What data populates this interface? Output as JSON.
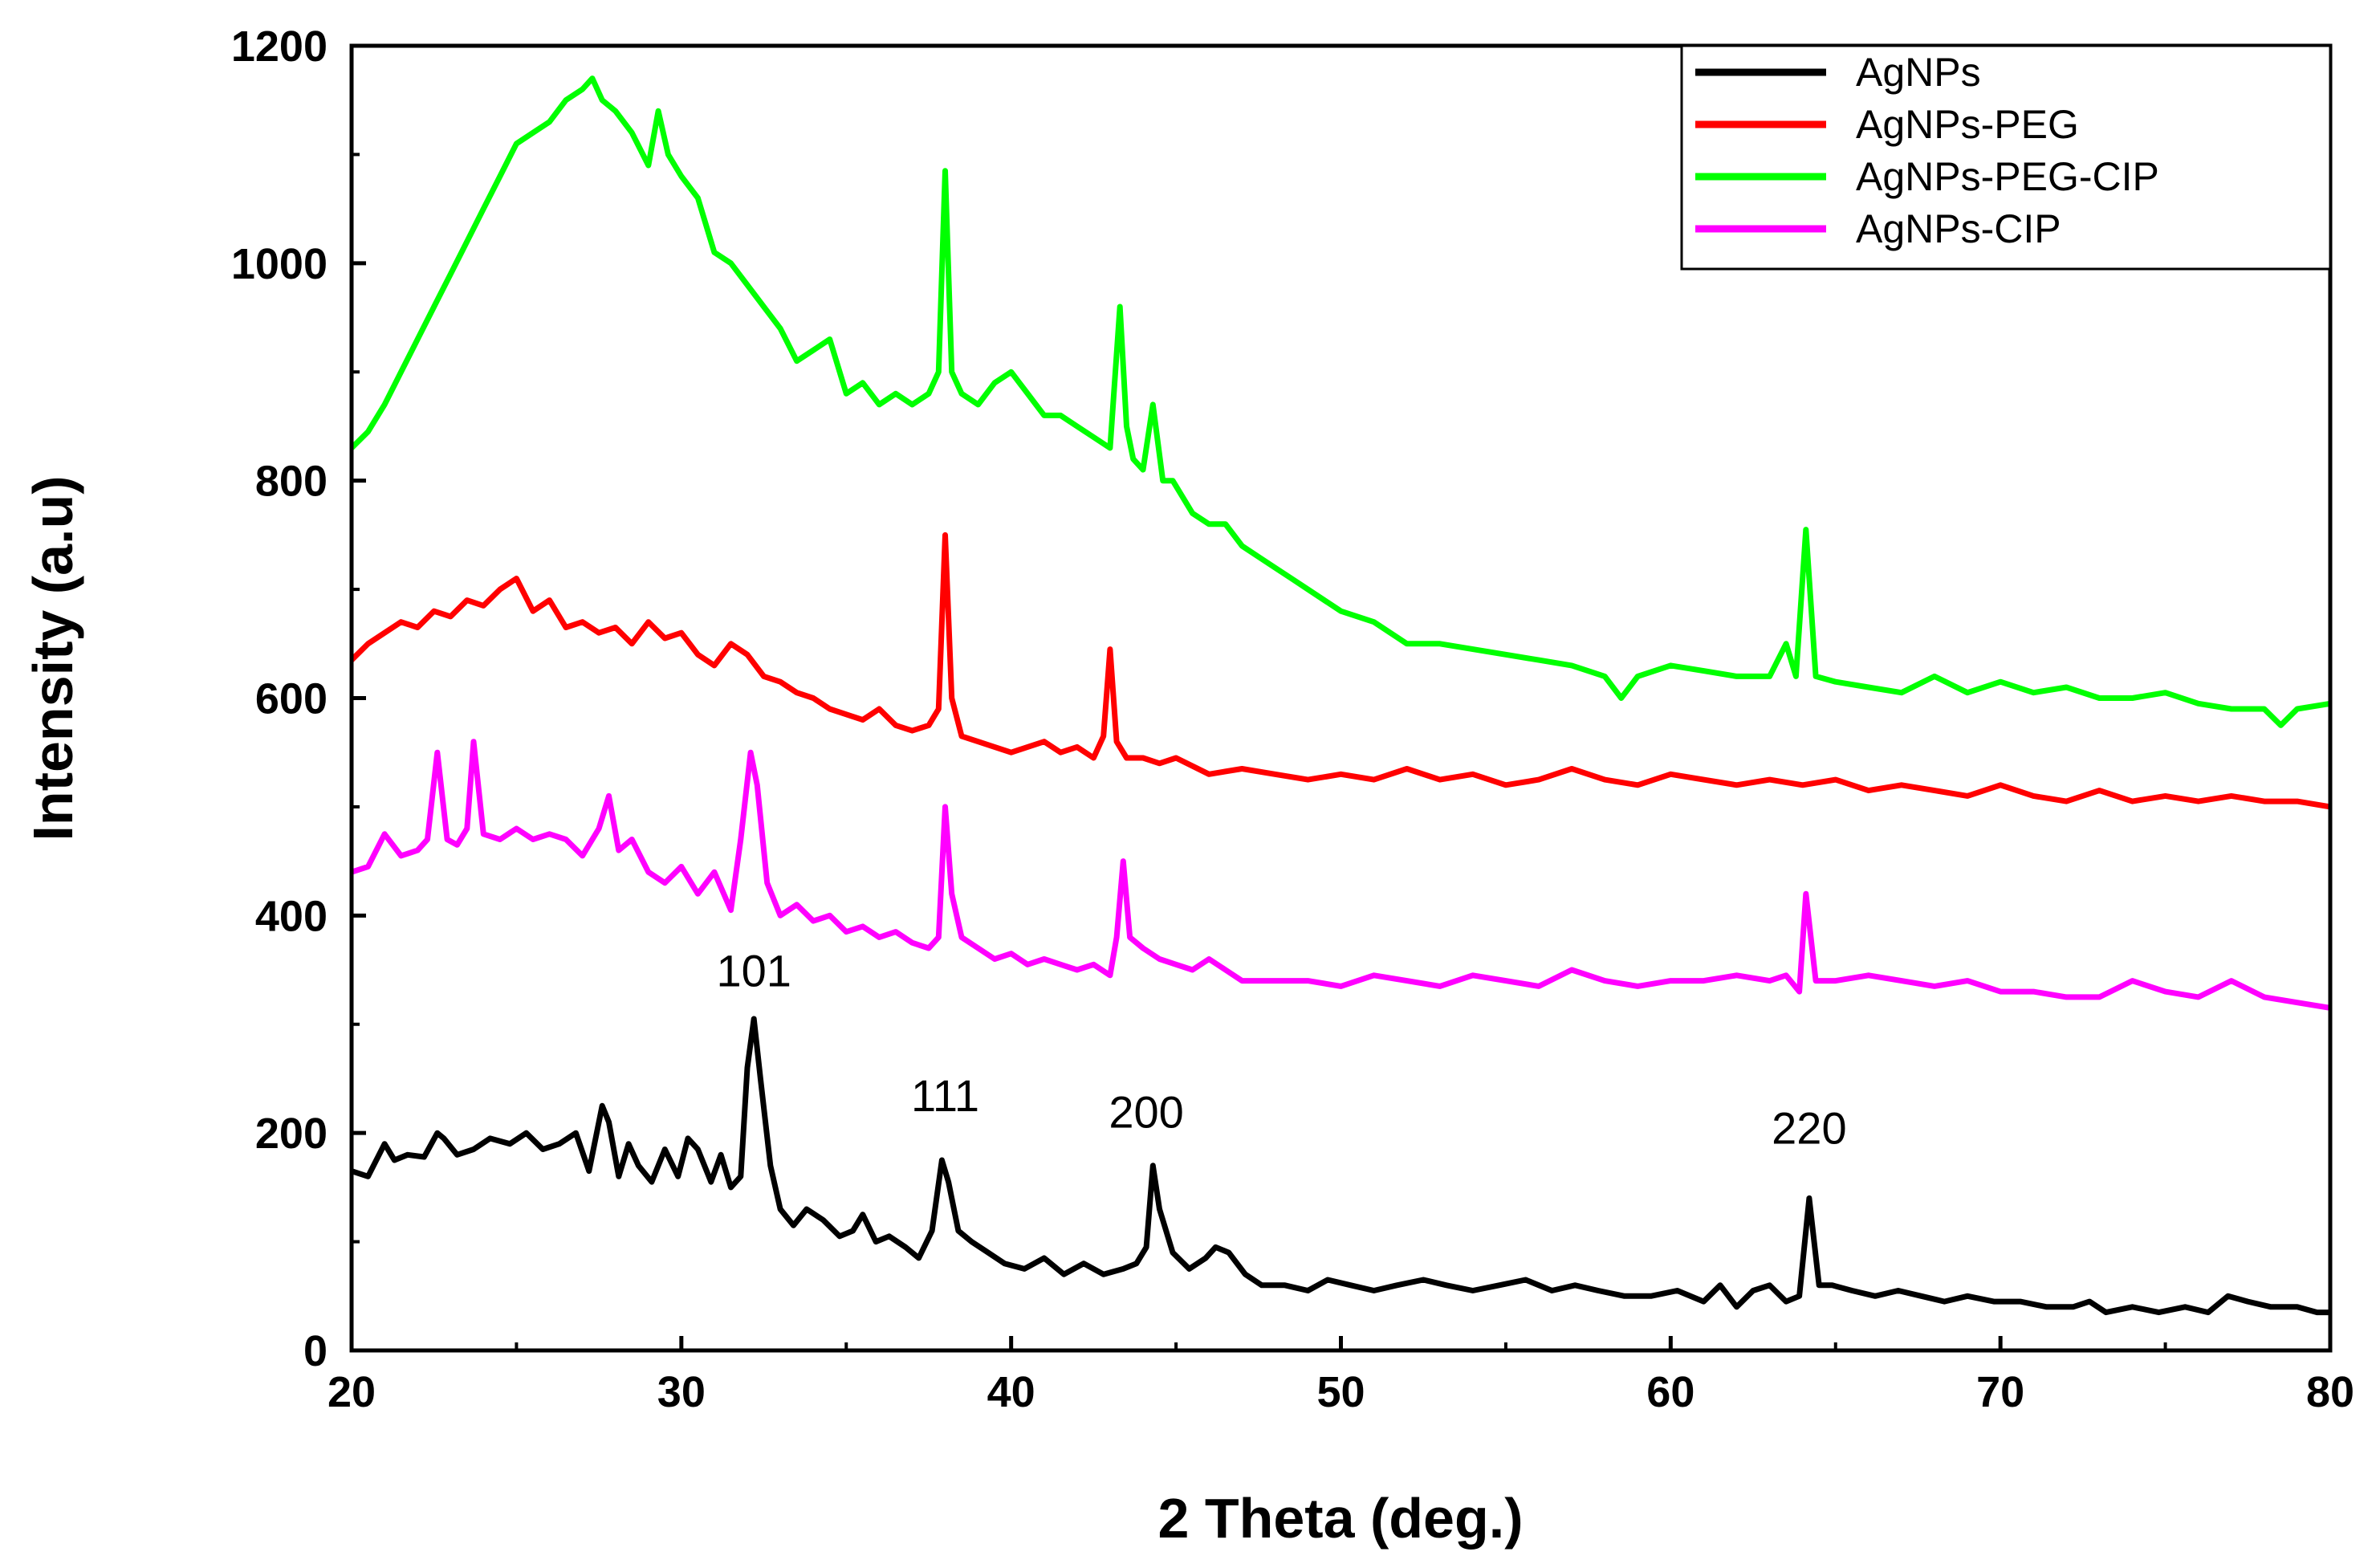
{
  "chart_data": {
    "type": "line",
    "title": "",
    "xlabel": "2 Theta (deg.)",
    "ylabel": "Intensity (a.u)",
    "xlim": [
      20,
      80
    ],
    "ylim": [
      0,
      1200
    ],
    "xticks": [
      20,
      30,
      40,
      50,
      60,
      70,
      80
    ],
    "yticks": [
      0,
      200,
      400,
      600,
      800,
      1000,
      1200
    ],
    "legend_position": "top-right",
    "series": [
      {
        "name": "AgNPs",
        "color": "#000000",
        "x": [
          20,
          20.5,
          21,
          21.3,
          21.7,
          22.2,
          22.6,
          22.8,
          23.2,
          23.7,
          24.2,
          24.8,
          25.3,
          25.8,
          26.3,
          26.8,
          27.2,
          27.6,
          27.8,
          28.1,
          28.4,
          28.7,
          29.1,
          29.5,
          29.9,
          30.2,
          30.5,
          30.9,
          31.2,
          31.5,
          31.8,
          32.0,
          32.2,
          32.4,
          32.7,
          33.0,
          33.4,
          33.8,
          34.3,
          34.8,
          35.2,
          35.5,
          35.9,
          36.3,
          36.8,
          37.2,
          37.6,
          37.9,
          38.1,
          38.4,
          38.8,
          39.3,
          39.8,
          40.4,
          41.0,
          41.6,
          42.2,
          42.8,
          43.4,
          43.8,
          44.1,
          44.3,
          44.5,
          44.9,
          45.4,
          45.9,
          46.2,
          46.6,
          47.1,
          47.6,
          48.3,
          49.0,
          49.6,
          50.3,
          51.0,
          51.7,
          52.5,
          53.2,
          54.0,
          54.8,
          55.6,
          56.4,
          57.1,
          57.8,
          58.6,
          59.4,
          60.2,
          61.0,
          61.5,
          62.0,
          62.5,
          63.0,
          63.5,
          63.9,
          64.2,
          64.5,
          64.9,
          65.5,
          66.2,
          66.9,
          67.6,
          68.3,
          69.0,
          69.8,
          70.6,
          71.4,
          72.2,
          72.7,
          73.2,
          74.0,
          74.8,
          75.6,
          76.3,
          76.9,
          77.5,
          78.2,
          79.0,
          79.6,
          80
        ],
        "y": [
          165,
          160,
          190,
          175,
          180,
          178,
          200,
          195,
          180,
          185,
          195,
          190,
          200,
          185,
          190,
          200,
          165,
          225,
          210,
          160,
          190,
          170,
          155,
          185,
          160,
          195,
          185,
          155,
          180,
          150,
          160,
          260,
          305,
          250,
          170,
          130,
          115,
          130,
          120,
          105,
          110,
          125,
          100,
          105,
          95,
          85,
          110,
          175,
          155,
          110,
          100,
          90,
          80,
          75,
          85,
          70,
          80,
          70,
          75,
          80,
          95,
          170,
          130,
          90,
          75,
          85,
          95,
          90,
          70,
          60,
          60,
          55,
          65,
          60,
          55,
          60,
          65,
          60,
          55,
          60,
          65,
          55,
          60,
          55,
          50,
          50,
          55,
          45,
          60,
          40,
          55,
          60,
          45,
          50,
          140,
          60,
          60,
          55,
          50,
          55,
          50,
          45,
          50,
          45,
          45,
          40,
          40,
          45,
          35,
          40,
          35,
          40,
          35,
          50,
          45,
          40,
          40,
          35,
          35
        ]
      },
      {
        "name": "AgNPs-PEG",
        "color": "#ff0000",
        "x": [
          20,
          20.5,
          21,
          21.5,
          22,
          22.5,
          23,
          23.5,
          24,
          24.5,
          25,
          25.5,
          26,
          26.5,
          27,
          27.5,
          28,
          28.5,
          29,
          29.5,
          30,
          30.5,
          31,
          31.5,
          32,
          32.5,
          33,
          33.5,
          34,
          34.5,
          35,
          35.5,
          36,
          36.5,
          37,
          37.5,
          37.8,
          38.0,
          38.2,
          38.5,
          39,
          39.5,
          40,
          40.5,
          41,
          41.5,
          42,
          42.5,
          42.8,
          43.0,
          43.2,
          43.5,
          44,
          44.5,
          45,
          46,
          47,
          48,
          49,
          50,
          51,
          52,
          53,
          54,
          55,
          56,
          57,
          58,
          59,
          60,
          61,
          62,
          63,
          64,
          65,
          66,
          67,
          68,
          69,
          70,
          71,
          72,
          73,
          74,
          75,
          76,
          77,
          78,
          79,
          80
        ],
        "y": [
          635,
          650,
          660,
          670,
          665,
          680,
          675,
          690,
          685,
          700,
          710,
          680,
          690,
          665,
          670,
          660,
          665,
          650,
          670,
          655,
          660,
          640,
          630,
          650,
          640,
          620,
          615,
          605,
          600,
          590,
          585,
          580,
          590,
          575,
          570,
          575,
          590,
          750,
          600,
          565,
          560,
          555,
          550,
          555,
          560,
          550,
          555,
          545,
          565,
          645,
          560,
          545,
          545,
          540,
          545,
          530,
          535,
          530,
          525,
          530,
          525,
          535,
          525,
          530,
          520,
          525,
          535,
          525,
          520,
          530,
          525,
          520,
          525,
          520,
          525,
          515,
          520,
          515,
          510,
          520,
          510,
          505,
          515,
          505,
          510,
          505,
          510,
          505,
          505,
          500
        ]
      },
      {
        "name": "AgNPs-PEG-CIP",
        "color": "#00ff00",
        "x": [
          20,
          20.5,
          21,
          21.5,
          22,
          22.5,
          23,
          23.5,
          24,
          24.5,
          25,
          25.5,
          26,
          26.5,
          27,
          27.3,
          27.6,
          28,
          28.5,
          29,
          29.3,
          29.6,
          30,
          30.5,
          31,
          31.5,
          32,
          32.5,
          33,
          33.5,
          34,
          34.5,
          35,
          35.5,
          36,
          36.5,
          37,
          37.5,
          37.8,
          38.0,
          38.2,
          38.5,
          39,
          39.5,
          40,
          40.5,
          41,
          41.5,
          42,
          42.5,
          43,
          43.3,
          43.5,
          43.7,
          44,
          44.3,
          44.6,
          44.9,
          45.5,
          46,
          46.5,
          47,
          47.5,
          48,
          48.5,
          49,
          50,
          51,
          52,
          53,
          54,
          55,
          56,
          57,
          58,
          58.5,
          59,
          60,
          61,
          62,
          63,
          63.5,
          63.8,
          64.1,
          64.4,
          65,
          66,
          67,
          68,
          69,
          70,
          71,
          72,
          73,
          74,
          75,
          76,
          77,
          78,
          78.5,
          79,
          80
        ],
        "y": [
          830,
          845,
          870,
          900,
          930,
          960,
          990,
          1020,
          1050,
          1080,
          1110,
          1120,
          1130,
          1150,
          1160,
          1170,
          1150,
          1140,
          1120,
          1090,
          1140,
          1100,
          1080,
          1060,
          1010,
          1000,
          980,
          960,
          940,
          910,
          920,
          930,
          880,
          890,
          870,
          880,
          870,
          880,
          900,
          1085,
          900,
          880,
          870,
          890,
          900,
          880,
          860,
          860,
          850,
          840,
          830,
          960,
          850,
          820,
          810,
          870,
          800,
          800,
          770,
          760,
          760,
          740,
          730,
          720,
          710,
          700,
          680,
          670,
          650,
          650,
          645,
          640,
          635,
          630,
          620,
          600,
          620,
          630,
          625,
          620,
          620,
          650,
          620,
          755,
          620,
          615,
          610,
          605,
          620,
          605,
          615,
          605,
          610,
          600,
          600,
          605,
          595,
          590,
          590,
          575,
          590,
          595
        ]
      },
      {
        "name": "AgNPs-CIP",
        "color": "#ff00ff",
        "x": [
          20,
          20.5,
          21,
          21.5,
          22,
          22.3,
          22.6,
          22.9,
          23.2,
          23.5,
          23.7,
          24,
          24.5,
          25,
          25.5,
          26,
          26.5,
          27,
          27.5,
          27.8,
          28.1,
          28.5,
          29,
          29.5,
          30,
          30.5,
          31,
          31.5,
          31.8,
          32.1,
          32.3,
          32.6,
          33,
          33.5,
          34,
          34.5,
          35,
          35.5,
          36,
          36.5,
          37,
          37.5,
          37.8,
          38.0,
          38.2,
          38.5,
          39,
          39.5,
          40,
          40.5,
          41,
          41.5,
          42,
          42.5,
          43,
          43.2,
          43.4,
          43.6,
          44,
          44.5,
          45,
          45.5,
          46,
          46.5,
          47,
          48,
          49,
          50,
          51,
          52,
          53,
          54,
          55,
          56,
          57,
          58,
          59,
          60,
          61,
          62,
          63,
          63.5,
          63.9,
          64.1,
          64.4,
          65,
          66,
          67,
          68,
          69,
          70,
          71,
          72,
          73,
          74,
          75,
          76,
          77,
          78,
          79,
          80
        ],
        "y": [
          440,
          445,
          475,
          455,
          460,
          470,
          550,
          470,
          465,
          480,
          560,
          475,
          470,
          480,
          470,
          475,
          470,
          455,
          480,
          510,
          460,
          470,
          440,
          430,
          445,
          420,
          440,
          405,
          470,
          550,
          520,
          430,
          400,
          410,
          395,
          400,
          385,
          390,
          380,
          385,
          375,
          370,
          380,
          500,
          420,
          380,
          370,
          360,
          365,
          355,
          360,
          355,
          350,
          355,
          345,
          380,
          450,
          380,
          370,
          360,
          355,
          350,
          360,
          350,
          340,
          340,
          340,
          335,
          345,
          340,
          335,
          345,
          340,
          335,
          350,
          340,
          335,
          340,
          340,
          345,
          340,
          345,
          330,
          420,
          340,
          340,
          345,
          340,
          335,
          340,
          330,
          330,
          325,
          325,
          340,
          330,
          325,
          340,
          325,
          320,
          315
        ]
      }
    ],
    "annotations": [
      {
        "text": "101",
        "x": 32.2,
        "y": 335
      },
      {
        "text": "111",
        "x": 38.0,
        "y": 220
      },
      {
        "text": "200",
        "x": 44.1,
        "y": 205
      },
      {
        "text": "220",
        "x": 64.2,
        "y": 190
      }
    ]
  }
}
